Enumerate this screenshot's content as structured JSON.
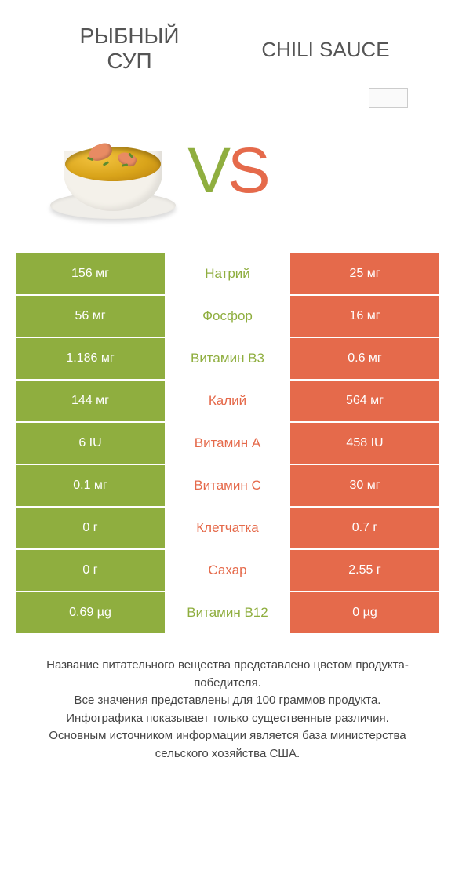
{
  "colors": {
    "green": "#8fae3f",
    "orange": "#e56a4b",
    "background": "#ffffff",
    "text": "#444444"
  },
  "header": {
    "left_title_line1": "РЫБНЫЙ",
    "left_title_line2": "СУП",
    "right_title": "CHILI SAUCE"
  },
  "vs": {
    "letter_v": "V",
    "letter_s": "S"
  },
  "rows": [
    {
      "left": "156 мг",
      "label": "Натрий",
      "right": "25 мг",
      "winner": "left"
    },
    {
      "left": "56 мг",
      "label": "Фосфор",
      "right": "16 мг",
      "winner": "left"
    },
    {
      "left": "1.186 мг",
      "label": "Витамин B3",
      "right": "0.6 мг",
      "winner": "left"
    },
    {
      "left": "144 мг",
      "label": "Калий",
      "right": "564 мг",
      "winner": "right"
    },
    {
      "left": "6 IU",
      "label": "Витамин A",
      "right": "458 IU",
      "winner": "right"
    },
    {
      "left": "0.1 мг",
      "label": "Витамин C",
      "right": "30 мг",
      "winner": "right"
    },
    {
      "left": "0 г",
      "label": "Клетчатка",
      "right": "0.7 г",
      "winner": "right"
    },
    {
      "left": "0 г",
      "label": "Сахар",
      "right": "2.55 г",
      "winner": "right"
    },
    {
      "left": "0.69 µg",
      "label": "Витамин B12",
      "right": "0 µg",
      "winner": "left"
    }
  ],
  "footnote": {
    "line1": "Название питательного вещества представлено цветом продукта-победителя.",
    "line2": "Все значения представлены для 100 граммов продукта.",
    "line3": "Инфографика показывает только существенные различия.",
    "line4": "Основным источником информации является база министерства сельского хозяйства США."
  }
}
